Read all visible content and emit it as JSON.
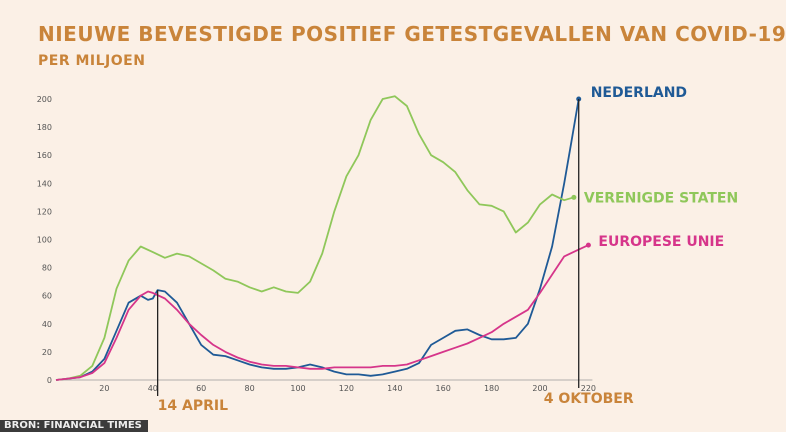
{
  "title": "NIEUWE BEVESTIGDE POSITIEF GETESTGEVALLEN VAN COVID-19",
  "subtitle": "PER MILJOEN",
  "source": "BRON: FINANCIAL TIMES",
  "chart_data": {
    "type": "line",
    "title": "NIEUWE BEVESTIGDE POSITIEF GETESTGEVALLEN VAN COVID-19",
    "subtitle": "PER MILJOEN",
    "xlabel": "",
    "ylabel": "",
    "xlim": [
      0,
      220
    ],
    "ylim": [
      0,
      200
    ],
    "x_ticks": [
      20,
      40,
      60,
      80,
      100,
      120,
      140,
      160,
      180,
      200,
      220
    ],
    "y_ticks": [
      0,
      20,
      40,
      60,
      80,
      100,
      120,
      140,
      160,
      180,
      200
    ],
    "grid": false,
    "annotations": [
      {
        "label": "14 APRIL",
        "x": 42
      },
      {
        "label": "4 OKTOBER",
        "x": 216
      }
    ],
    "series": [
      {
        "name": "NEDERLAND",
        "color": "#1f5a96",
        "points": [
          [
            0,
            0
          ],
          [
            5,
            1
          ],
          [
            10,
            2
          ],
          [
            15,
            6
          ],
          [
            20,
            15
          ],
          [
            25,
            35
          ],
          [
            30,
            55
          ],
          [
            35,
            60
          ],
          [
            38,
            57
          ],
          [
            40,
            58
          ],
          [
            42,
            64
          ],
          [
            45,
            63
          ],
          [
            50,
            55
          ],
          [
            55,
            40
          ],
          [
            60,
            25
          ],
          [
            65,
            18
          ],
          [
            70,
            17
          ],
          [
            75,
            14
          ],
          [
            80,
            11
          ],
          [
            85,
            9
          ],
          [
            90,
            8
          ],
          [
            95,
            8
          ],
          [
            100,
            9
          ],
          [
            105,
            11
          ],
          [
            110,
            9
          ],
          [
            115,
            6
          ],
          [
            120,
            4
          ],
          [
            125,
            4
          ],
          [
            130,
            3
          ],
          [
            135,
            4
          ],
          [
            140,
            6
          ],
          [
            145,
            8
          ],
          [
            150,
            12
          ],
          [
            155,
            25
          ],
          [
            160,
            30
          ],
          [
            165,
            35
          ],
          [
            170,
            36
          ],
          [
            175,
            32
          ],
          [
            180,
            29
          ],
          [
            185,
            29
          ],
          [
            190,
            30
          ],
          [
            195,
            40
          ],
          [
            200,
            65
          ],
          [
            205,
            95
          ],
          [
            210,
            140
          ],
          [
            213,
            170
          ],
          [
            216,
            200
          ]
        ]
      },
      {
        "name": "VERENIGDE STATEN",
        "color": "#8fc75a",
        "points": [
          [
            0,
            0
          ],
          [
            5,
            1
          ],
          [
            10,
            3
          ],
          [
            15,
            10
          ],
          [
            20,
            30
          ],
          [
            25,
            65
          ],
          [
            30,
            85
          ],
          [
            35,
            95
          ],
          [
            40,
            91
          ],
          [
            45,
            87
          ],
          [
            50,
            90
          ],
          [
            55,
            88
          ],
          [
            60,
            83
          ],
          [
            65,
            78
          ],
          [
            70,
            72
          ],
          [
            75,
            70
          ],
          [
            80,
            66
          ],
          [
            85,
            63
          ],
          [
            90,
            66
          ],
          [
            95,
            63
          ],
          [
            100,
            62
          ],
          [
            105,
            70
          ],
          [
            110,
            90
          ],
          [
            115,
            120
          ],
          [
            120,
            145
          ],
          [
            125,
            160
          ],
          [
            130,
            185
          ],
          [
            135,
            200
          ],
          [
            140,
            202
          ],
          [
            145,
            195
          ],
          [
            150,
            175
          ],
          [
            155,
            160
          ],
          [
            160,
            155
          ],
          [
            165,
            148
          ],
          [
            170,
            135
          ],
          [
            175,
            125
          ],
          [
            180,
            124
          ],
          [
            185,
            120
          ],
          [
            190,
            105
          ],
          [
            195,
            112
          ],
          [
            200,
            125
          ],
          [
            205,
            132
          ],
          [
            210,
            128
          ],
          [
            214,
            130
          ]
        ]
      },
      {
        "name": "EUROPESE UNIE",
        "color": "#d6358a",
        "points": [
          [
            0,
            0
          ],
          [
            5,
            1
          ],
          [
            10,
            2
          ],
          [
            15,
            5
          ],
          [
            20,
            12
          ],
          [
            25,
            30
          ],
          [
            30,
            50
          ],
          [
            35,
            60
          ],
          [
            38,
            63
          ],
          [
            40,
            62
          ],
          [
            45,
            58
          ],
          [
            50,
            50
          ],
          [
            55,
            40
          ],
          [
            60,
            32
          ],
          [
            65,
            25
          ],
          [
            70,
            20
          ],
          [
            75,
            16
          ],
          [
            80,
            13
          ],
          [
            85,
            11
          ],
          [
            90,
            10
          ],
          [
            95,
            10
          ],
          [
            100,
            9
          ],
          [
            105,
            8
          ],
          [
            110,
            8
          ],
          [
            115,
            9
          ],
          [
            120,
            9
          ],
          [
            125,
            9
          ],
          [
            130,
            9
          ],
          [
            135,
            10
          ],
          [
            140,
            10
          ],
          [
            145,
            11
          ],
          [
            150,
            14
          ],
          [
            155,
            17
          ],
          [
            160,
            20
          ],
          [
            165,
            23
          ],
          [
            170,
            26
          ],
          [
            175,
            30
          ],
          [
            180,
            34
          ],
          [
            185,
            40
          ],
          [
            190,
            45
          ],
          [
            195,
            50
          ],
          [
            200,
            62
          ],
          [
            205,
            75
          ],
          [
            210,
            88
          ],
          [
            215,
            92
          ],
          [
            220,
            96
          ]
        ]
      }
    ]
  }
}
